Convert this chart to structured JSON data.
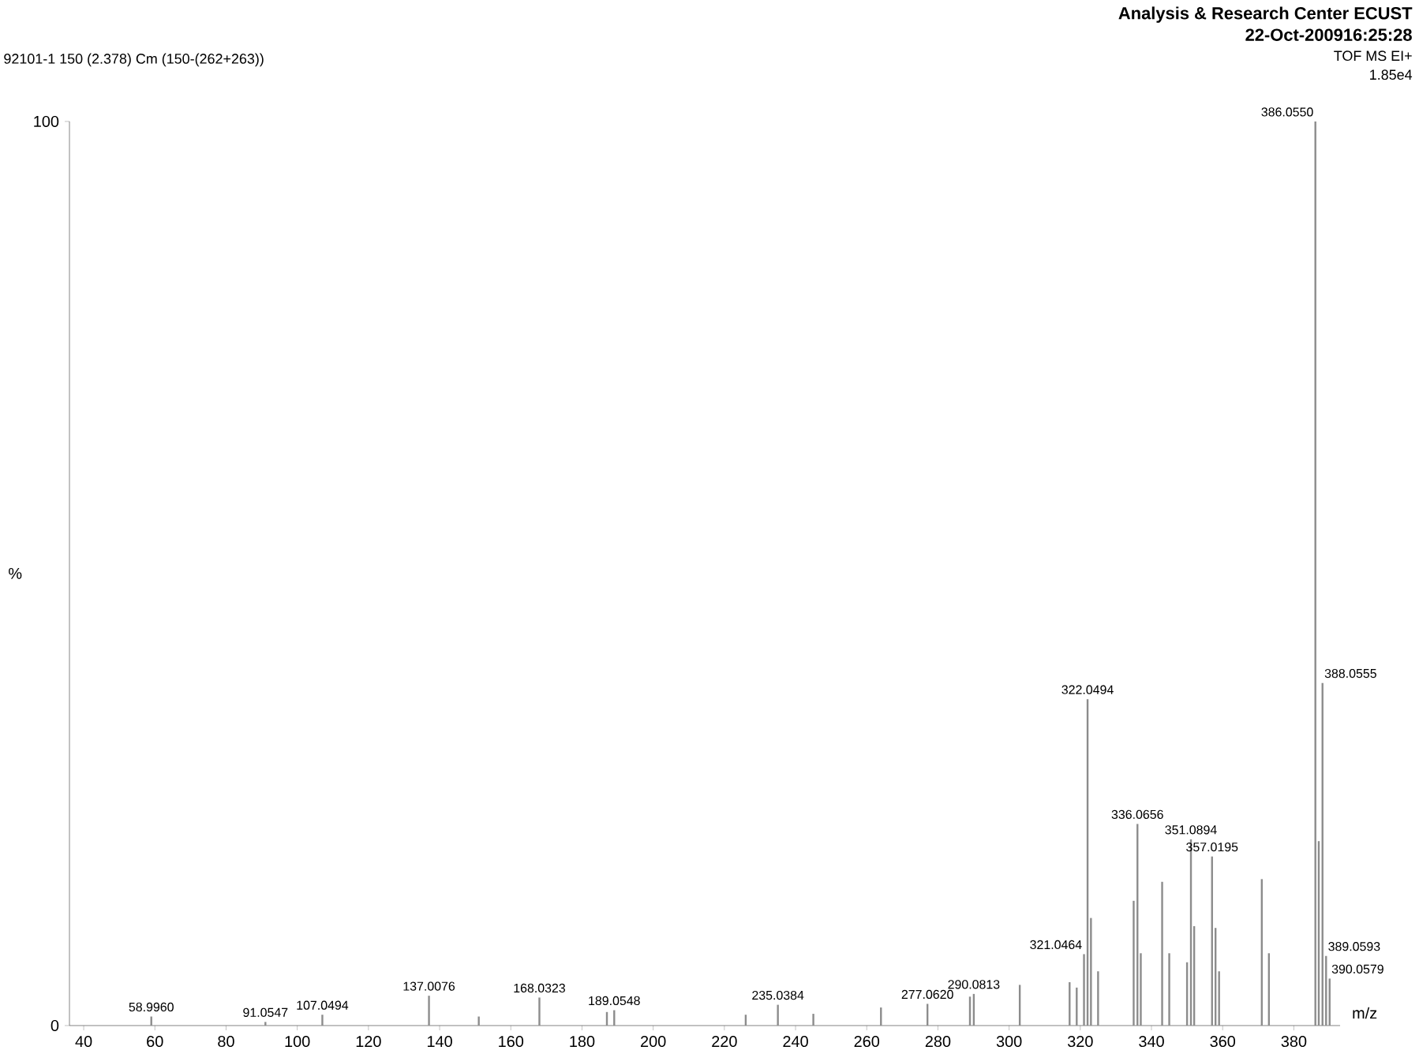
{
  "chart_data": {
    "type": "bar",
    "title": "Analysis & Research Center ECUST",
    "subtitle": "22-Oct-200916:25:28",
    "xlabel": "m/z",
    "ylabel": "%",
    "annotations": [
      "92101-1 150 (2.378) Cm (150-(262+263))",
      "TOF MS EI+",
      "1.85e4",
      {
        "text": "58.9960",
        "x": 58.996,
        "y": 1.0
      },
      {
        "text": "91.0547",
        "x": 91.0547,
        "y": 0.4
      },
      {
        "text": "107.0494",
        "x": 107.0494,
        "y": 1.2
      },
      {
        "text": "137.0076",
        "x": 137.0076,
        "y": 3.3
      },
      {
        "text": "168.0323",
        "x": 168.0323,
        "y": 3.1
      },
      {
        "text": "189.0548",
        "x": 189.0548,
        "y": 1.7
      },
      {
        "text": "235.0384",
        "x": 235.0384,
        "y": 2.3
      },
      {
        "text": "277.0620",
        "x": 277.062,
        "y": 2.4
      },
      {
        "text": "290.0813",
        "x": 290.0813,
        "y": 3.5
      },
      {
        "text": "321.0464",
        "x": 321.0464,
        "y": 7.9
      },
      {
        "text": "322.0494",
        "x": 322.0494,
        "y": 36.1
      },
      {
        "text": "336.0656",
        "x": 336.0656,
        "y": 22.3
      },
      {
        "text": "351.0894",
        "x": 351.0894,
        "y": 20.6
      },
      {
        "text": "357.0195",
        "x": 357.0195,
        "y": 18.7
      },
      {
        "text": "386.0550",
        "x": 386.055,
        "y": 100
      },
      {
        "text": "388.0555",
        "x": 388.0555,
        "y": 37.9
      },
      {
        "text": "389.0593",
        "x": 389.0593,
        "y": 7.7
      },
      {
        "text": "390.0579",
        "x": 390.0579,
        "y": 5.2
      }
    ],
    "x": [
      58.996,
      91.0547,
      107.0494,
      137.0076,
      151,
      168.0323,
      187,
      189.0548,
      226,
      235.0384,
      245,
      264,
      277.062,
      289,
      290.0813,
      303,
      317,
      319,
      321.0464,
      322.0494,
      323,
      325,
      335,
      336.0656,
      337,
      343,
      345,
      350,
      351.0894,
      352,
      357.0195,
      358,
      359,
      371,
      373,
      386.055,
      387,
      388.0555,
      389.0593,
      390.0579
    ],
    "values": [
      1.0,
      0.4,
      1.2,
      3.3,
      1.0,
      3.1,
      1.5,
      1.7,
      1.2,
      2.3,
      1.3,
      2.0,
      2.4,
      3.2,
      3.5,
      4.5,
      4.8,
      4.2,
      7.9,
      36.1,
      11.9,
      6,
      13.8,
      22.3,
      8,
      15.9,
      8,
      7,
      20.6,
      11,
      18.7,
      10.8,
      6,
      16.2,
      8,
      100,
      20.4,
      37.9,
      7.7,
      5.2
    ],
    "color": "#8c8c8c",
    "xlim": [
      36,
      393
    ],
    "ylim": [
      0,
      100
    ],
    "xticks": [
      40,
      60,
      80,
      100,
      120,
      140,
      160,
      180,
      200,
      220,
      240,
      260,
      280,
      300,
      320,
      340,
      360,
      380
    ],
    "yticks": [
      0,
      100
    ]
  }
}
